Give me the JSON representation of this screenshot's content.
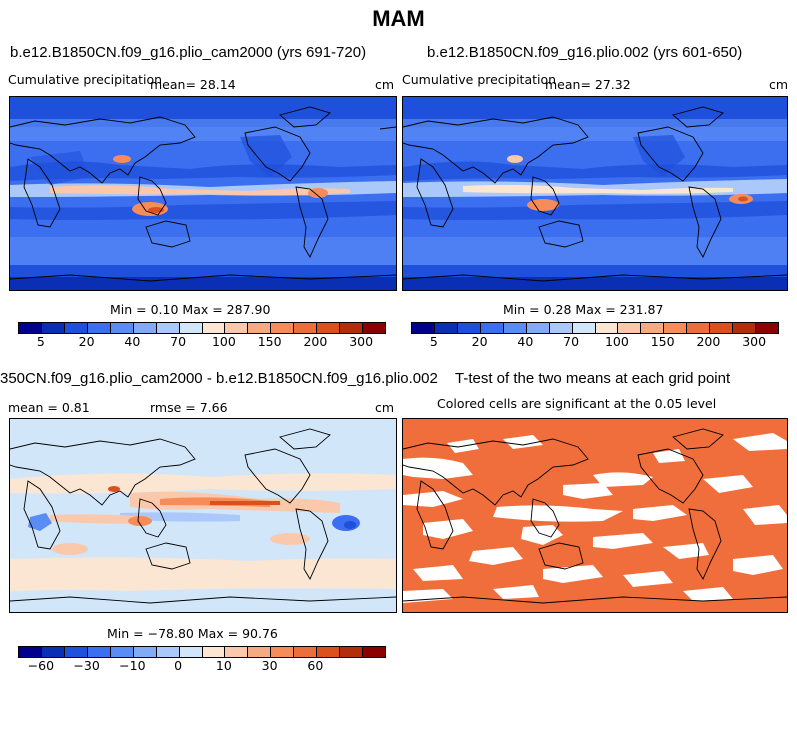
{
  "title": "MAM",
  "panels": [
    {
      "id": "p1",
      "title": "b.e12.B1850CN.f09_g16.plio_cam2000 (yrs 691-720)",
      "variable": "Cumulative precipitation",
      "mean_text": "mean=  28.14",
      "units": "cm",
      "minmax_text": "Min =    0.10 Max = 287.90",
      "min": 0.1,
      "max": 287.9
    },
    {
      "id": "p2",
      "title": "b.e12.B1850CN.f09_g16.plio.002 (yrs 601-650)",
      "variable": "Cumulative precipitation",
      "mean_text": "mean=  27.32",
      "units": "cm",
      "minmax_text": "Min =    0.28 Max = 231.87",
      "min": 0.28,
      "max": 231.87
    },
    {
      "id": "p3",
      "title": "350CN.f09_g16.plio_cam2000 - b.e12.B1850CN.f09_g16.plio.002",
      "mean_text": "mean =    0.81",
      "rmse_text": "rmse =    7.66",
      "units": "cm",
      "minmax_text": "Min = −78.80 Max =  90.76",
      "min": -78.8,
      "max": 90.76
    },
    {
      "id": "p4",
      "title": "T-test of the two means at each grid point",
      "subtitle": "Colored cells are significant at the 0.05 level",
      "fill_color": "#f06e3c"
    }
  ],
  "colorbars": {
    "precip": {
      "colors": [
        "#00008c",
        "#0a2fb4",
        "#1e50dc",
        "#3c6ef0",
        "#5a8cf5",
        "#82aaf5",
        "#aac8fa",
        "#d2e6fa",
        "#fae6d2",
        "#fac8aa",
        "#f5aa82",
        "#f58c5a",
        "#eb6e3c",
        "#dc501e",
        "#b42d0a",
        "#8c0000"
      ],
      "labels": [
        "5",
        "20",
        "40",
        "70",
        "100",
        "150",
        "200",
        "300"
      ]
    },
    "diff": {
      "colors": [
        "#00008c",
        "#0a2fb4",
        "#1e50dc",
        "#3c6ef0",
        "#5a8cf5",
        "#82aaf5",
        "#aac8fa",
        "#d2e6fa",
        "#fae6d2",
        "#fac8aa",
        "#f5aa82",
        "#f58c5a",
        "#eb6e3c",
        "#dc501e",
        "#b42d0a",
        "#8c0000"
      ],
      "labels": [
        "−60",
        "−30",
        "−10",
        "0",
        "10",
        "30",
        "60"
      ]
    }
  }
}
